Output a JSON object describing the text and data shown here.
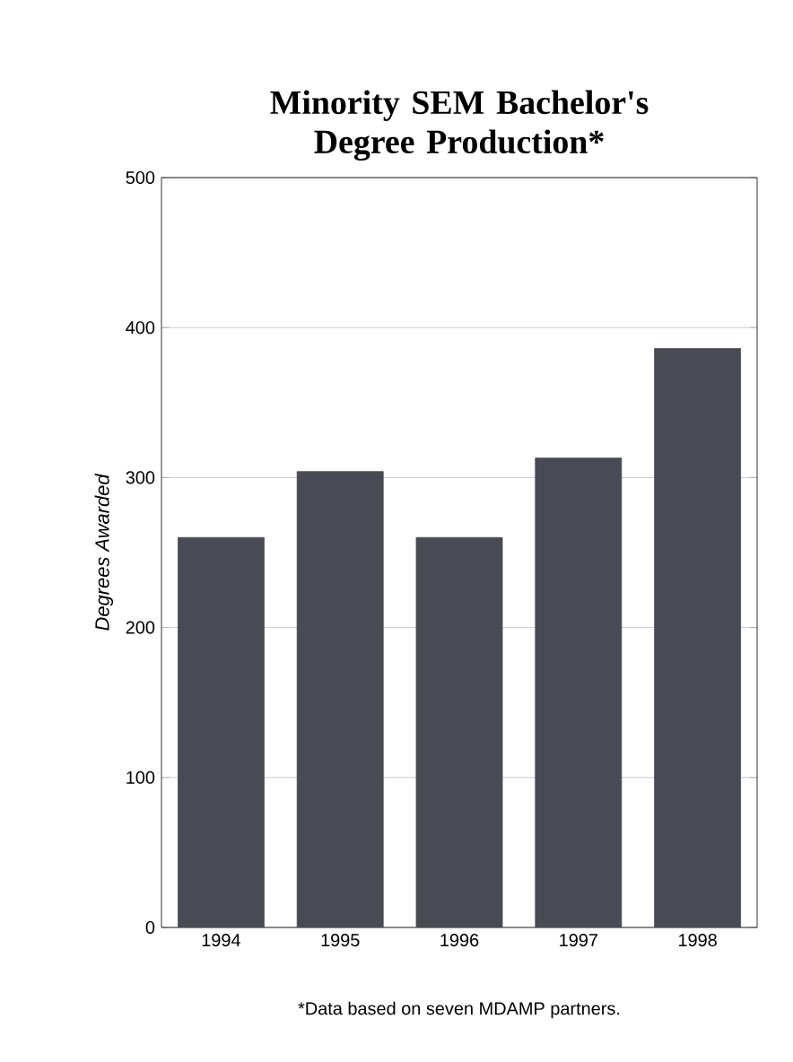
{
  "chart_data": {
    "type": "bar",
    "title": "Minority SEM Bachelor's Degree Production*",
    "ylabel": "Degrees Awarded",
    "categories": [
      "1994",
      "1995",
      "1996",
      "1997",
      "1998"
    ],
    "values": [
      260,
      304,
      260,
      313,
      386
    ],
    "color": "#4a4a55",
    "ylim": [
      0,
      500
    ],
    "yticks": [
      0,
      100,
      200,
      300,
      400,
      500
    ],
    "grid": "y",
    "annotations": [
      "*Data based on seven MDAMP partners."
    ]
  }
}
